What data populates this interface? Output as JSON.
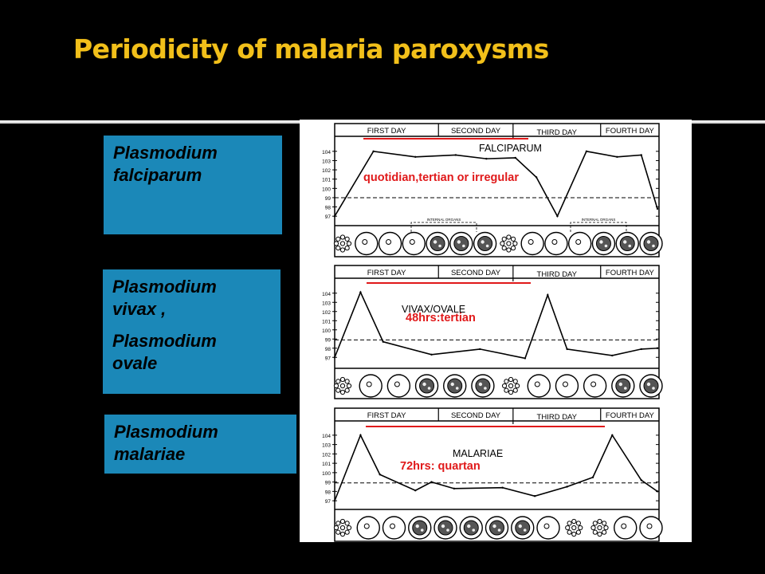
{
  "slide": {
    "title": "Periodicity of malaria paroxysms"
  },
  "labels": [
    {
      "lines": [
        "Plasmodium",
        "falciparum"
      ]
    },
    {
      "lines": [
        "Plasmodium",
        "vivax ,",
        "Plasmodium",
        "ovale"
      ]
    },
    {
      "lines": [
        "Plasmodium",
        "malariae"
      ]
    }
  ],
  "chart_data": [
    {
      "type": "line",
      "title": "FALCIPARUM",
      "annotation": "quotidian,tertian or irregular",
      "days": [
        "FIRST DAY",
        "SECOND DAY",
        "THIRD DAY",
        "FOURTH DAY"
      ],
      "y_ticks": [
        "104",
        "103",
        "102",
        "101",
        "100",
        "99",
        "98",
        "97"
      ],
      "ylim": [
        96.5,
        104.5
      ],
      "x": [
        0.0,
        0.12,
        0.25,
        0.375,
        0.47,
        0.56,
        0.625,
        0.69,
        0.78,
        0.875,
        0.95,
        1.0
      ],
      "y": [
        97.0,
        104.0,
        103.4,
        103.6,
        103.2,
        103.3,
        101.2,
        97.0,
        104.0,
        103.4,
        103.6,
        97.8
      ],
      "baseline": 99,
      "internal_organs_label": "INTERNAL ORGANS",
      "cells": [
        "cluster",
        "ring",
        "ring",
        "ring",
        "dark",
        "dark",
        "dark",
        "cluster",
        "ring",
        "ring",
        "ring",
        "dark",
        "dark",
        "dark"
      ]
    },
    {
      "type": "line",
      "title": "VIVAX/OVALE",
      "annotation": "48hrs:tertian",
      "days": [
        "FIRST DAY",
        "SECOND DAY",
        "THIRD DAY",
        "FOURTH DAY"
      ],
      "y_ticks": [
        "104",
        "103",
        "102",
        "101",
        "100",
        "99",
        "98",
        "97"
      ],
      "ylim": [
        96.5,
        104.5
      ],
      "x": [
        0.0,
        0.08,
        0.15,
        0.3,
        0.45,
        0.59,
        0.66,
        0.72,
        0.86,
        0.95,
        1.0
      ],
      "y": [
        97.0,
        104.1,
        98.7,
        97.3,
        97.9,
        96.9,
        103.8,
        97.9,
        97.2,
        97.9,
        98.0
      ],
      "baseline": 98.9,
      "cells": [
        "cluster",
        "ring",
        "ring",
        "dark",
        "dark",
        "dark",
        "cluster",
        "ring",
        "ring",
        "ring",
        "dark",
        "dark"
      ]
    },
    {
      "type": "line",
      "title": "MALARIAE",
      "annotation": "72hrs: quartan",
      "days": [
        "FIRST DAY",
        "SECOND DAY",
        "THIRD DAY",
        "FOURTH DAY"
      ],
      "y_ticks": [
        "104",
        "103",
        "102",
        "101",
        "100",
        "99",
        "98",
        "97"
      ],
      "ylim": [
        96.5,
        104.5
      ],
      "x": [
        0.0,
        0.08,
        0.14,
        0.25,
        0.3,
        0.37,
        0.52,
        0.62,
        0.72,
        0.8,
        0.86,
        0.95,
        1.0
      ],
      "y": [
        97.0,
        104.0,
        99.8,
        98.1,
        99.0,
        98.3,
        98.4,
        97.5,
        98.5,
        99.5,
        104.0,
        99.2,
        98.0
      ],
      "baseline": 98.9,
      "cells": [
        "cluster",
        "ring",
        "ring",
        "dark",
        "dark",
        "dark",
        "dark",
        "dark",
        "ring",
        "cluster",
        "cluster",
        "ring",
        "ring"
      ]
    }
  ]
}
